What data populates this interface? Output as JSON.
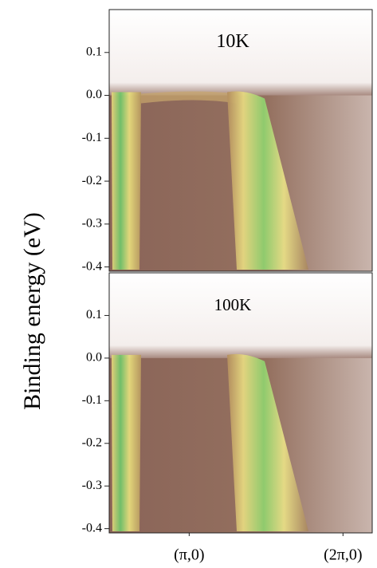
{
  "chart_data": [
    {
      "type": "image",
      "title": "10K",
      "ylabel": "Binding energy (eV)",
      "ylim": [
        -0.41,
        0.2
      ],
      "yticks": [
        {
          "value": 0.1,
          "label": "0.1"
        },
        {
          "value": 0.0,
          "label": "0.0"
        },
        {
          "value": -0.1,
          "label": "-0.1"
        },
        {
          "value": -0.2,
          "label": "-0.2"
        },
        {
          "value": -0.3,
          "label": "-0.3"
        },
        {
          "value": -0.4,
          "label": "-0.4"
        }
      ]
    },
    {
      "type": "image",
      "title": "100K",
      "ylim": [
        -0.41,
        0.2
      ],
      "yticks": [
        {
          "value": 0.1,
          "label": "0.1"
        },
        {
          "value": 0.0,
          "label": "0.0"
        },
        {
          "value": -0.1,
          "label": "-0.1"
        },
        {
          "value": -0.2,
          "label": "-0.2"
        },
        {
          "value": -0.3,
          "label": "-0.3"
        },
        {
          "value": -0.4,
          "label": "-0.4"
        }
      ],
      "xlim": [
        0.48,
        2.19
      ],
      "xticks": [
        {
          "value": 1,
          "label": "(π,0)"
        },
        {
          "value": 2,
          "label": "(2π,0)"
        }
      ]
    }
  ]
}
